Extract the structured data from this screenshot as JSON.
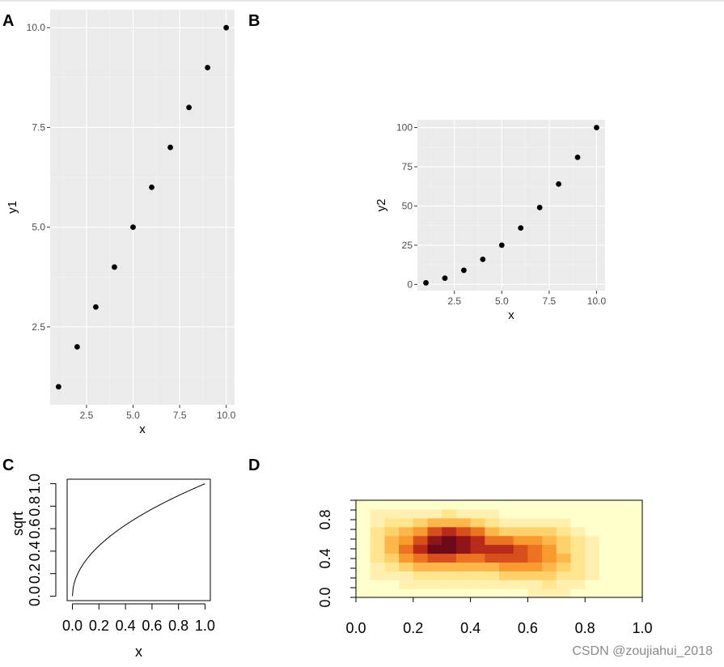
{
  "watermark": "CSDN @zoujiahui_2018",
  "colors": {
    "panel_bg": "#ebebeb",
    "grid_major": "#ffffff",
    "point": "#000000",
    "heat_low": "#ffffcc",
    "heat_high": "#6b0b1a"
  },
  "chart_data": [
    {
      "panel": "A",
      "type": "scatter",
      "x": [
        1,
        2,
        3,
        4,
        5,
        6,
        7,
        8,
        9,
        10
      ],
      "y": [
        1,
        2,
        3,
        4,
        5,
        6,
        7,
        8,
        9,
        10
      ],
      "xlabel": "x",
      "ylabel": "y1",
      "xlim": [
        0.55,
        10.45
      ],
      "ylim": [
        0.55,
        10.45
      ],
      "xticks": [
        2.5,
        5.0,
        7.5,
        10.0
      ],
      "xtick_labels": [
        "2.5",
        "5.0",
        "7.5",
        "10.0"
      ],
      "yticks": [
        2.5,
        5.0,
        7.5,
        10.0
      ],
      "ytick_labels": [
        "2.5",
        "5.0",
        "7.5",
        "10.0"
      ]
    },
    {
      "panel": "B",
      "type": "scatter",
      "x": [
        1,
        2,
        3,
        4,
        5,
        6,
        7,
        8,
        9,
        10
      ],
      "y": [
        1,
        4,
        9,
        16,
        25,
        36,
        49,
        64,
        81,
        100
      ],
      "xlabel": "x",
      "ylabel": "y2",
      "xlim": [
        0.55,
        10.45
      ],
      "ylim": [
        -3.95,
        104.95
      ],
      "xticks": [
        2.5,
        5.0,
        7.5,
        10.0
      ],
      "xtick_labels": [
        "2.5",
        "5.0",
        "7.5",
        "10.0"
      ],
      "yticks": [
        0,
        25,
        50,
        75,
        100
      ],
      "ytick_labels": [
        "0",
        "25",
        "50",
        "75",
        "100"
      ]
    },
    {
      "panel": "C",
      "type": "line",
      "function": "sqrt(x)",
      "x_range": [
        0,
        1
      ],
      "xlabel": "x",
      "ylabel": "sqrt",
      "xlim": [
        -0.04,
        1.04
      ],
      "ylim": [
        -0.04,
        1.04
      ],
      "xticks": [
        0.0,
        0.2,
        0.4,
        0.6,
        0.8,
        1.0
      ],
      "xtick_labels": [
        "0.0",
        "0.2",
        "0.4",
        "0.6",
        "0.8",
        "1.0"
      ],
      "yticks": [
        0.0,
        0.2,
        0.4,
        0.6,
        0.8,
        1.0
      ],
      "ytick_labels": [
        "0.0",
        "0.2",
        "0.4",
        "0.6",
        "0.8",
        "1.0"
      ]
    },
    {
      "panel": "D",
      "type": "heatmap",
      "xlim": [
        0,
        1
      ],
      "ylim": [
        0,
        1
      ],
      "xticks": [
        0.0,
        0.2,
        0.4,
        0.6,
        0.8,
        1.0
      ],
      "xtick_labels": [
        "0.0",
        "0.2",
        "0.4",
        "0.6",
        "0.8",
        "1.0"
      ],
      "yticks": [
        0.0,
        0.4,
        0.8
      ],
      "ytick_labels": [
        "0.0",
        "0.4",
        "0.8"
      ],
      "grid": [
        20,
        11
      ],
      "blobs": [
        {
          "x": 0.27,
          "y": 0.52,
          "sx": 0.085,
          "sy": 0.17,
          "w": 1.0
        },
        {
          "x": 0.36,
          "y": 0.64,
          "sx": 0.06,
          "sy": 0.12,
          "w": 0.45
        },
        {
          "x": 0.45,
          "y": 0.5,
          "sx": 0.07,
          "sy": 0.16,
          "w": 0.5
        },
        {
          "x": 0.55,
          "y": 0.45,
          "sx": 0.07,
          "sy": 0.15,
          "w": 0.55
        },
        {
          "x": 0.68,
          "y": 0.38,
          "sx": 0.09,
          "sy": 0.17,
          "w": 0.45
        },
        {
          "x": 0.68,
          "y": 0.65,
          "sx": 0.06,
          "sy": 0.1,
          "w": 0.25
        },
        {
          "x": 0.12,
          "y": 0.55,
          "sx": 0.05,
          "sy": 0.2,
          "w": 0.25
        }
      ]
    }
  ]
}
